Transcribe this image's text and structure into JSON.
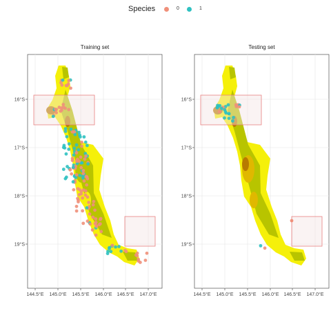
{
  "legend": {
    "title": "Species",
    "items": [
      {
        "label": "0",
        "color": "#f0907a"
      },
      {
        "label": "1",
        "color": "#2fc1c1"
      }
    ]
  },
  "panels": [
    {
      "title": "Training set"
    },
    {
      "title": "Testing set"
    }
  ],
  "axes": {
    "x_ticks": [
      "144.5°E",
      "145.0°E",
      "145.5°E",
      "146.0°E",
      "146.5°E",
      "147.0°E"
    ],
    "y_ticks": [
      "16°S",
      "17°S",
      "18°S",
      "19°S"
    ]
  },
  "colors": {
    "yellow": "#f5f00a",
    "olive": "#b8c400",
    "gold": "#e0b800",
    "brown": "#b87a00",
    "grid": "#ebebeb",
    "box": "#e88080"
  }
}
